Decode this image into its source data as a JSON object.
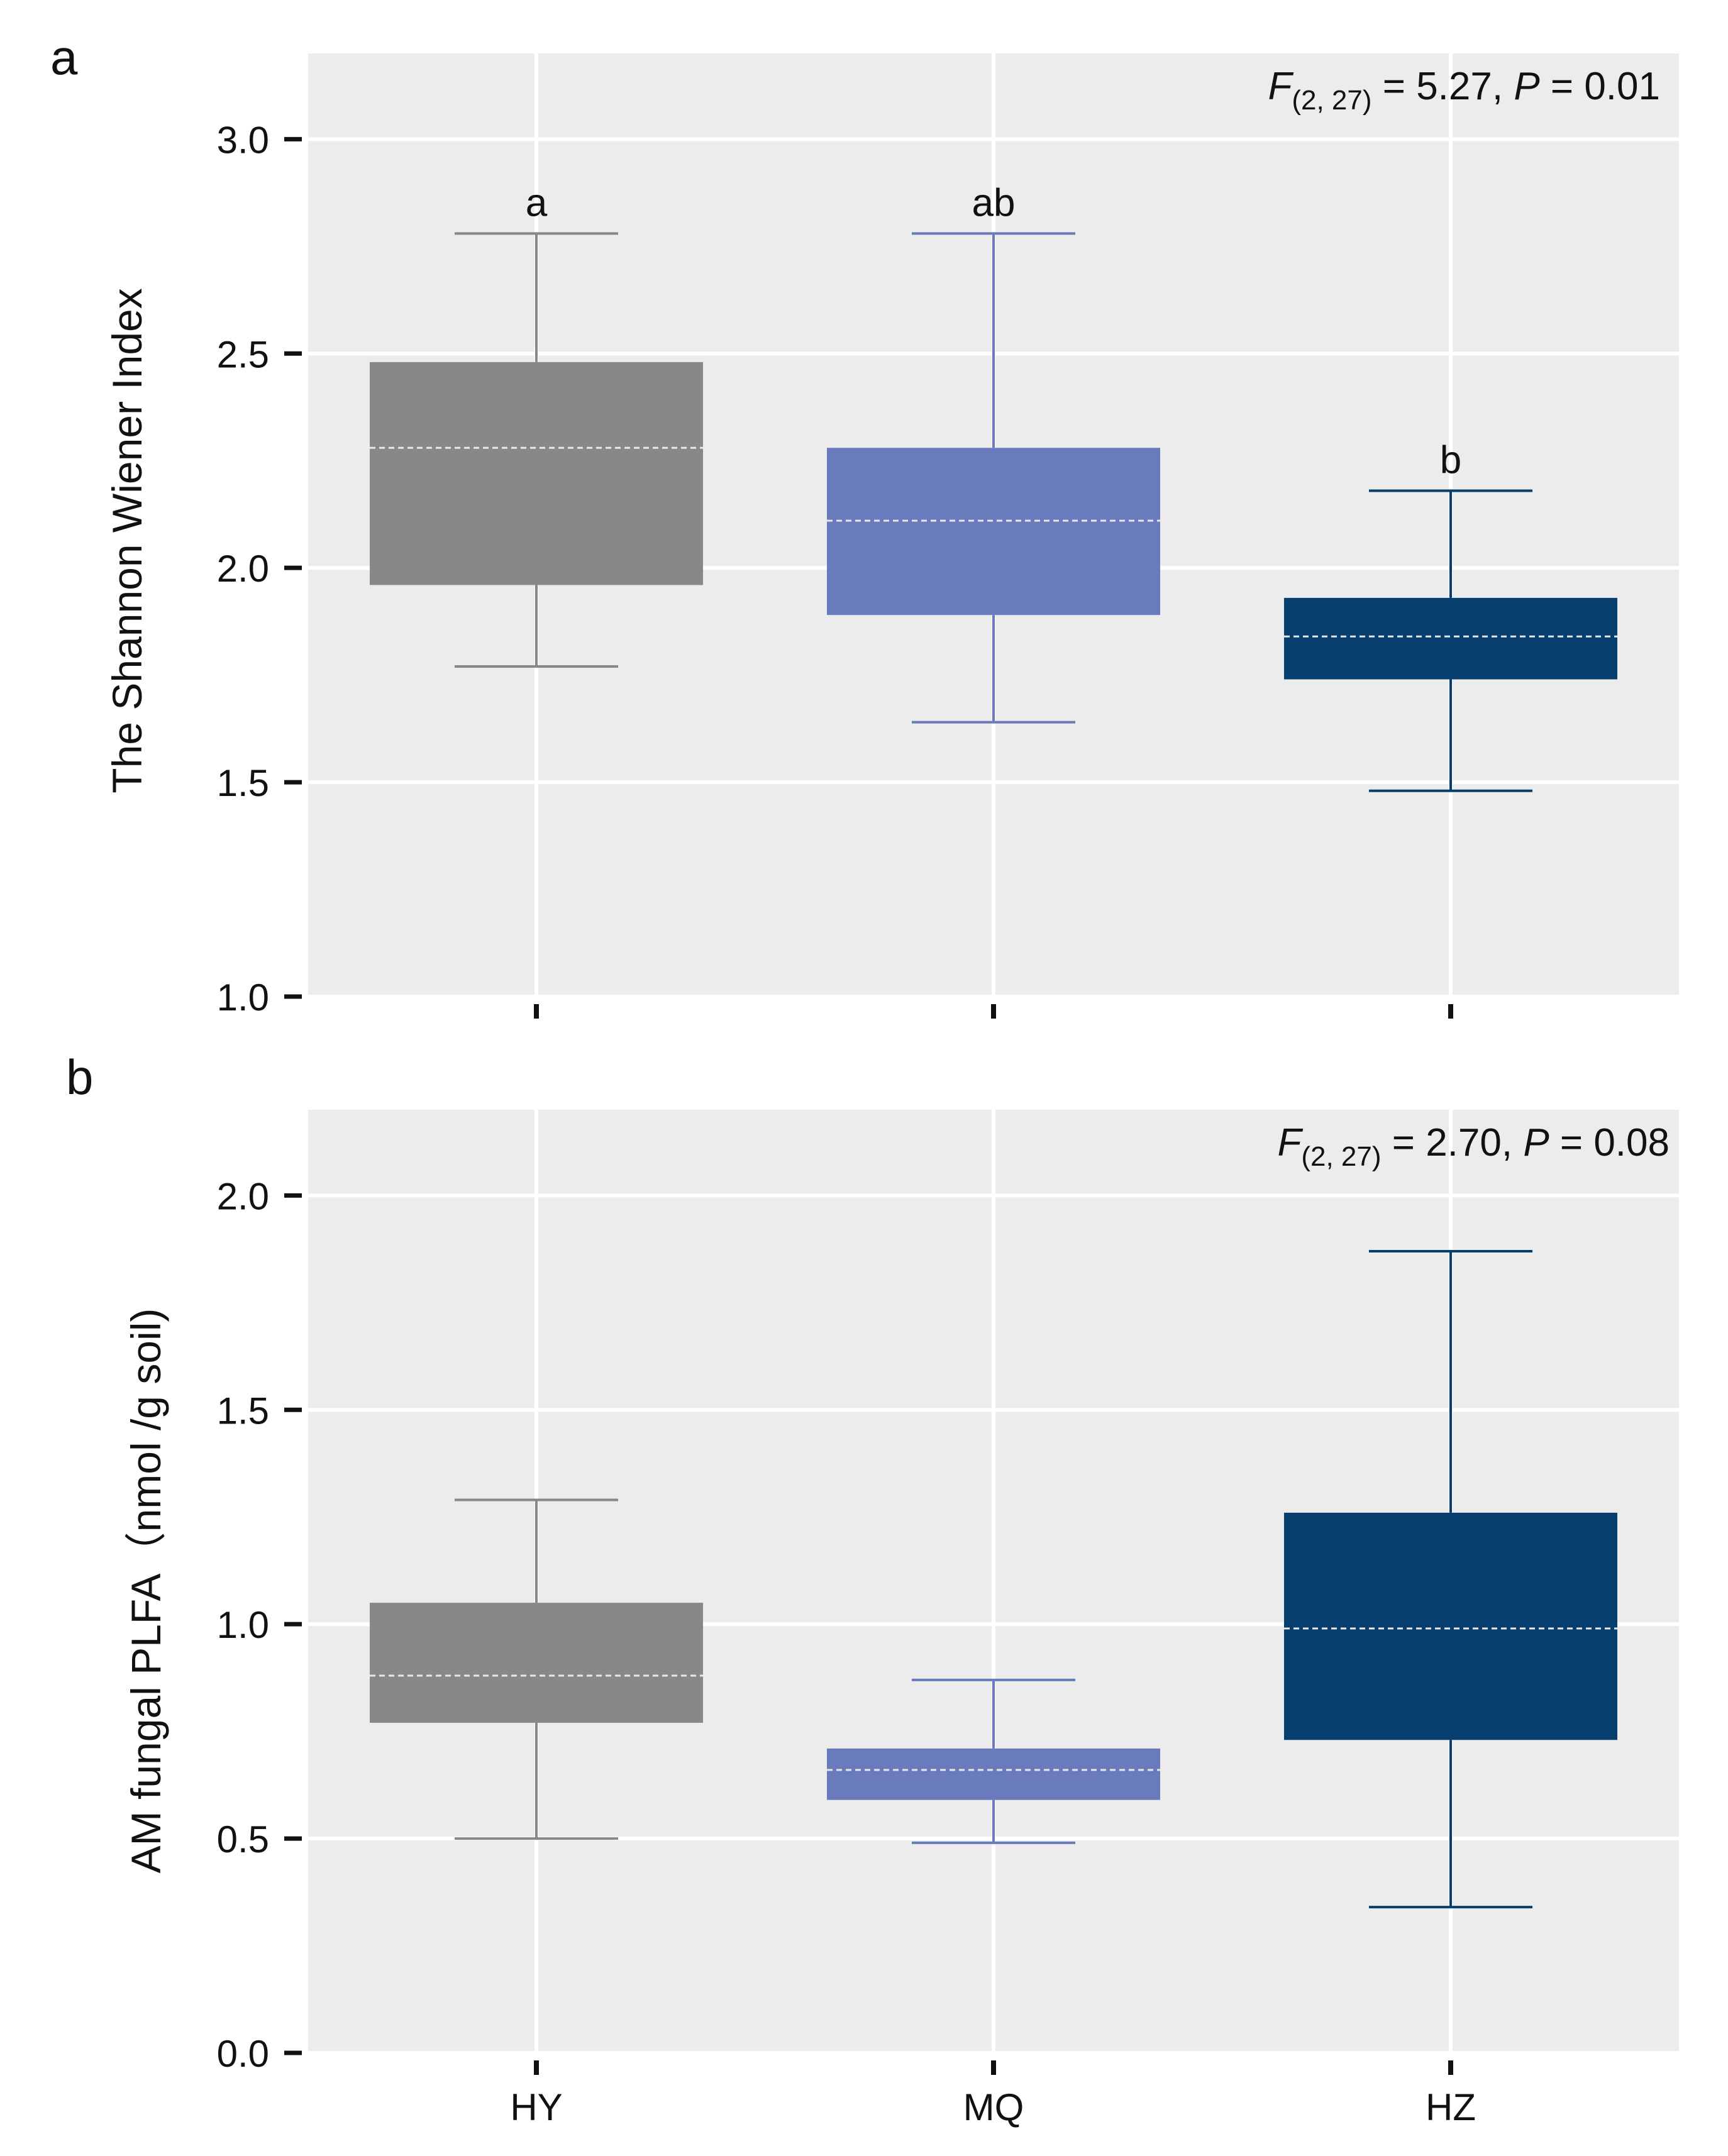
{
  "chart_data": [
    {
      "panel_label": "a",
      "type": "box",
      "categories": [
        "HY",
        "MQ",
        "HZ"
      ],
      "ylabel": "The Shannon Wiener Index",
      "ylim": [
        1.0,
        3.2
      ],
      "yticks": [
        "1.0",
        "1.5",
        "2.0",
        "2.5",
        "3.0"
      ],
      "ytick_values": [
        1.0,
        1.5,
        2.0,
        2.5,
        3.0
      ],
      "grid": true,
      "stat": {
        "f_letter": "F",
        "f_sub": "(2, 27)",
        "f_val": " = 5.27, ",
        "p_letter": "P",
        "p_val": " = 0.01"
      },
      "boxes": [
        {
          "group": "HY",
          "whisker_low": 1.77,
          "q1": 1.96,
          "mean": 2.28,
          "q3": 2.48,
          "whisker_high": 2.78,
          "letter": "a",
          "color": "#888888"
        },
        {
          "group": "MQ",
          "whisker_low": 1.64,
          "q1": 1.89,
          "mean": 2.11,
          "q3": 2.28,
          "whisker_high": 2.78,
          "letter": "ab",
          "color": "#6a7bbd"
        },
        {
          "group": "HZ",
          "whisker_low": 1.48,
          "q1": 1.74,
          "mean": 1.84,
          "q3": 1.93,
          "whisker_high": 2.18,
          "letter": "b",
          "color": "#063e6e"
        }
      ]
    },
    {
      "panel_label": "b",
      "type": "box",
      "categories": [
        "HY",
        "MQ",
        "HZ"
      ],
      "xticklabels": [
        "HY",
        "MQ",
        "HZ"
      ],
      "ylabel": "AM fungal PLFA（nmol /g soil)",
      "ylim": [
        0.0,
        2.2
      ],
      "yticks": [
        "0.0",
        "0.5",
        "1.0",
        "1.5",
        "2.0"
      ],
      "ytick_values": [
        0.0,
        0.5,
        1.0,
        1.5,
        2.0
      ],
      "grid": true,
      "stat": {
        "f_letter": "F",
        "f_sub": "(2, 27)",
        "f_val": " = 2.70, ",
        "p_letter": "P",
        "p_val": " = 0.08"
      },
      "boxes": [
        {
          "group": "HY",
          "whisker_low": 0.5,
          "q1": 0.77,
          "mean": 0.88,
          "q3": 1.05,
          "whisker_high": 1.29,
          "letter": "",
          "color": "#888888"
        },
        {
          "group": "MQ",
          "whisker_low": 0.49,
          "q1": 0.59,
          "mean": 0.66,
          "q3": 0.71,
          "whisker_high": 0.87,
          "letter": "",
          "color": "#6a7bbd"
        },
        {
          "group": "HZ",
          "whisker_low": 0.34,
          "q1": 0.73,
          "mean": 0.99,
          "q3": 1.26,
          "whisker_high": 1.87,
          "letter": "",
          "color": "#063e6e"
        }
      ]
    }
  ]
}
